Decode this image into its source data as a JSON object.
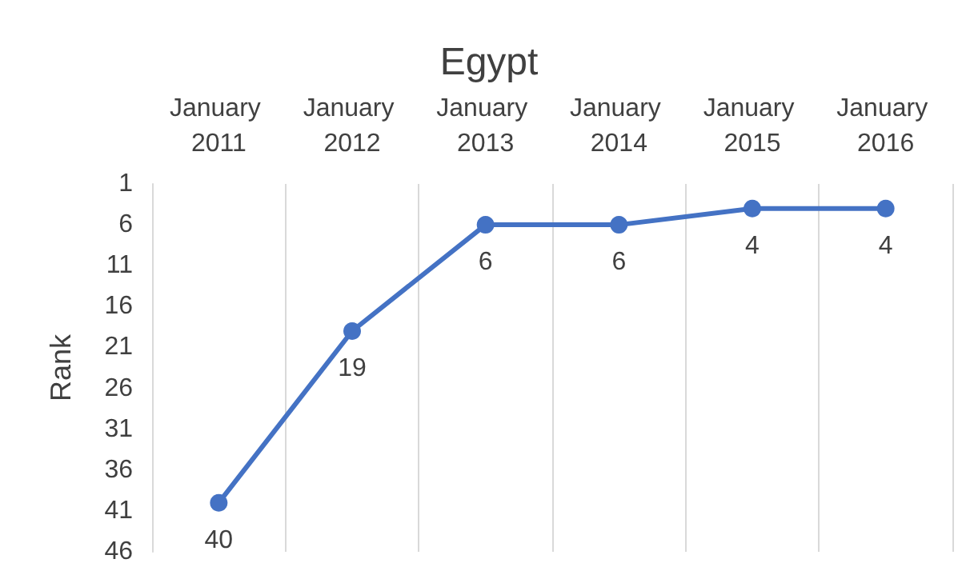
{
  "chart_data": {
    "type": "line",
    "title": "Egypt",
    "ylabel": "Rank",
    "categories": [
      "January 2011",
      "January 2012",
      "January 2013",
      "January 2014",
      "January 2015",
      "January 2016"
    ],
    "series": [
      {
        "color": "#4472c4",
        "values": [
          40,
          19,
          6,
          6,
          4,
          4
        ]
      }
    ],
    "ylim": [
      46,
      1
    ],
    "yticks": [
      1,
      6,
      11,
      16,
      21,
      26,
      31,
      36,
      41,
      46
    ],
    "grid": "x",
    "marker": "circle",
    "line_style": "solid",
    "data_labels": true
  }
}
